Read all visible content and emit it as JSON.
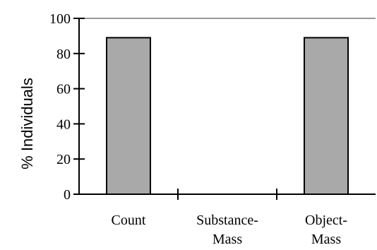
{
  "chart_data": {
    "type": "bar",
    "title": "",
    "xlabel": "",
    "ylabel": "% Individuals",
    "ylim": [
      0,
      100
    ],
    "yticks": [
      0,
      20,
      40,
      60,
      80,
      100
    ],
    "categories": [
      [
        "Count"
      ],
      [
        "Substance-",
        "Mass"
      ],
      [
        "Object-",
        "Mass"
      ]
    ],
    "values": [
      89,
      0,
      89
    ],
    "colors": {
      "bar_fill": "#a9a9a9",
      "bar_stroke": "#000000",
      "axis": "#000000",
      "top_gridline": "#999999"
    },
    "grid": false
  }
}
